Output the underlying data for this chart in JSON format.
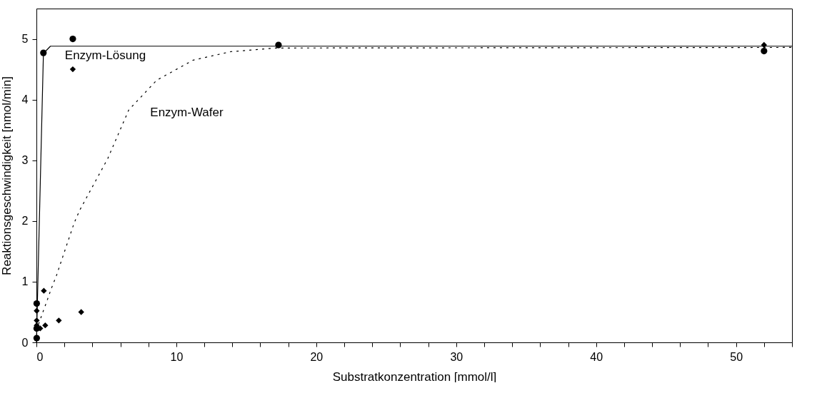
{
  "chart_data": {
    "type": "scatter",
    "xlabel": "Substratkonzentration [mmol/l]",
    "ylabel": "Reaktionsgeschwindigkeit [nmol/min]",
    "xlim": [
      0,
      54
    ],
    "ylim": [
      0,
      5.5
    ],
    "xticks": [
      0,
      {
        "value": 2,
        "label": null
      },
      {
        "value": 4,
        "label": null
      },
      {
        "value": 6,
        "label": null
      },
      {
        "value": 8,
        "label": null
      },
      10,
      {
        "value": 12,
        "label": null
      },
      {
        "value": 14,
        "label": null
      },
      {
        "value": 16,
        "label": null
      },
      {
        "value": 18,
        "label": null
      },
      20,
      {
        "value": 22,
        "label": null
      },
      {
        "value": 24,
        "label": null
      },
      {
        "value": 26,
        "label": null
      },
      {
        "value": 28,
        "label": null
      },
      30,
      {
        "value": 32,
        "label": null
      },
      {
        "value": 34,
        "label": null
      },
      {
        "value": 36,
        "label": null
      },
      {
        "value": 38,
        "label": null
      },
      40,
      {
        "value": 42,
        "label": null
      },
      {
        "value": 44,
        "label": null
      },
      {
        "value": 46,
        "label": null
      },
      {
        "value": 48,
        "label": null
      },
      50,
      {
        "value": 52,
        "label": null
      },
      {
        "value": 54,
        "label": null
      }
    ],
    "yticks": [
      0,
      1,
      2,
      3,
      4,
      5
    ],
    "grid": false,
    "series": [
      {
        "marker": "circle",
        "color": "#000000",
        "x": [
          0.02,
          0.02,
          0.02,
          0.5,
          2.6,
          17.3,
          52
        ],
        "values": [
          0.07,
          0.23,
          0.64,
          4.77,
          5.0,
          4.9,
          4.8
        ]
      },
      {
        "marker": "diamond",
        "color": "#000000",
        "x": [
          0.02,
          0.02,
          0.02,
          0.27,
          0.53,
          0.63,
          1.6,
          3.2,
          2.6,
          52
        ],
        "values": [
          0.52,
          0.36,
          0.28,
          0.23,
          0.85,
          0.28,
          0.36,
          0.5,
          4.5,
          4.9
        ]
      },
      {
        "type": "line",
        "line_style": "solid",
        "marker": "none",
        "color": "#000000",
        "x": [
          0,
          0.5,
          1,
          54
        ],
        "values": [
          0,
          4.76,
          4.88,
          4.88
        ]
      },
      {
        "type": "line",
        "line_style": "dotted",
        "marker": "none",
        "color": "#000000",
        "x": [
          0,
          0.4,
          0.75,
          1.07,
          1.43,
          2.7,
          3.1,
          5.1,
          6.6,
          8.6,
          11.2,
          13.9,
          17.1,
          54
        ],
        "values": [
          0.2,
          0.46,
          0.68,
          0.89,
          1.1,
          1.97,
          2.18,
          3.03,
          3.83,
          4.32,
          4.65,
          4.79,
          4.85,
          4.86
        ]
      }
    ],
    "annotations": [
      {
        "text": "Enzym-Lösung",
        "x": 0.5,
        "y": 4.77
      },
      {
        "text": "Enzym-Wafer",
        "x": 6.6,
        "y": 3.83
      }
    ]
  }
}
